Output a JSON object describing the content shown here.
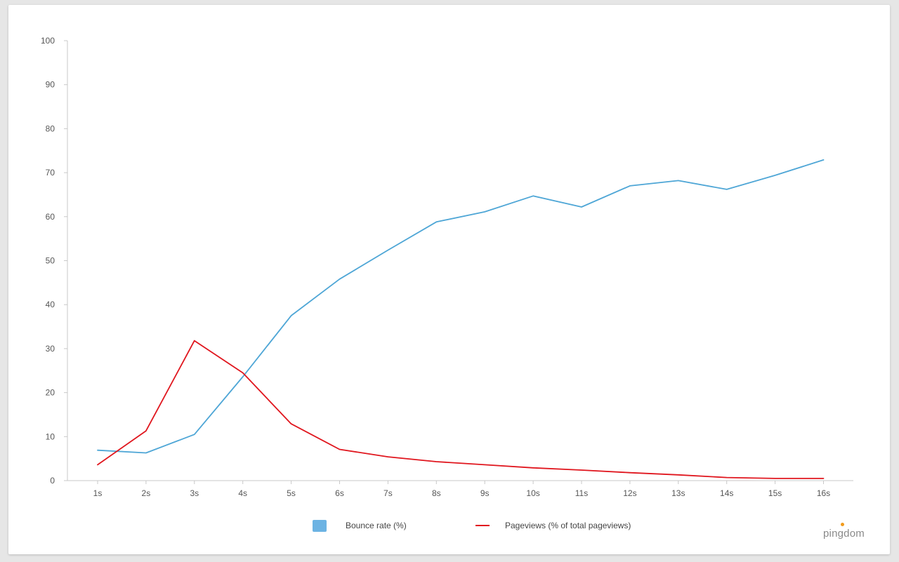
{
  "chart_data": {
    "type": "line",
    "categories": [
      "1s",
      "2s",
      "3s",
      "4s",
      "5s",
      "6s",
      "7s",
      "8s",
      "9s",
      "10s",
      "11s",
      "12s",
      "13s",
      "14s",
      "15s",
      "16s"
    ],
    "series": [
      {
        "name": "Bounce rate  (%)",
        "color": "#4ea6d6",
        "legend_style": "swatch",
        "values": [
          6.9,
          6.3,
          10.5,
          23.6,
          37.5,
          45.8,
          52.4,
          58.8,
          61.1,
          64.7,
          62.2,
          67.0,
          68.2,
          66.2,
          69.4,
          72.9
        ]
      },
      {
        "name": "Pageviews (% of total pageviews)",
        "color": "#e0161e",
        "legend_style": "line",
        "values": [
          3.6,
          11.3,
          31.8,
          24.5,
          12.9,
          7.1,
          5.4,
          4.3,
          3.6,
          2.9,
          2.4,
          1.8,
          1.3,
          0.7,
          0.5,
          0.5
        ]
      }
    ],
    "y_ticks": [
      "0",
      "10",
      "20",
      "30",
      "40",
      "50",
      "60",
      "70",
      "80",
      "90",
      "100"
    ],
    "ylim": [
      0,
      100
    ],
    "title": "",
    "xlabel": "",
    "ylabel": "",
    "grid": false,
    "legend_position": "bottom-center"
  },
  "branding": {
    "logo_text": "pingdom",
    "accent_color": "#f29b1c"
  }
}
